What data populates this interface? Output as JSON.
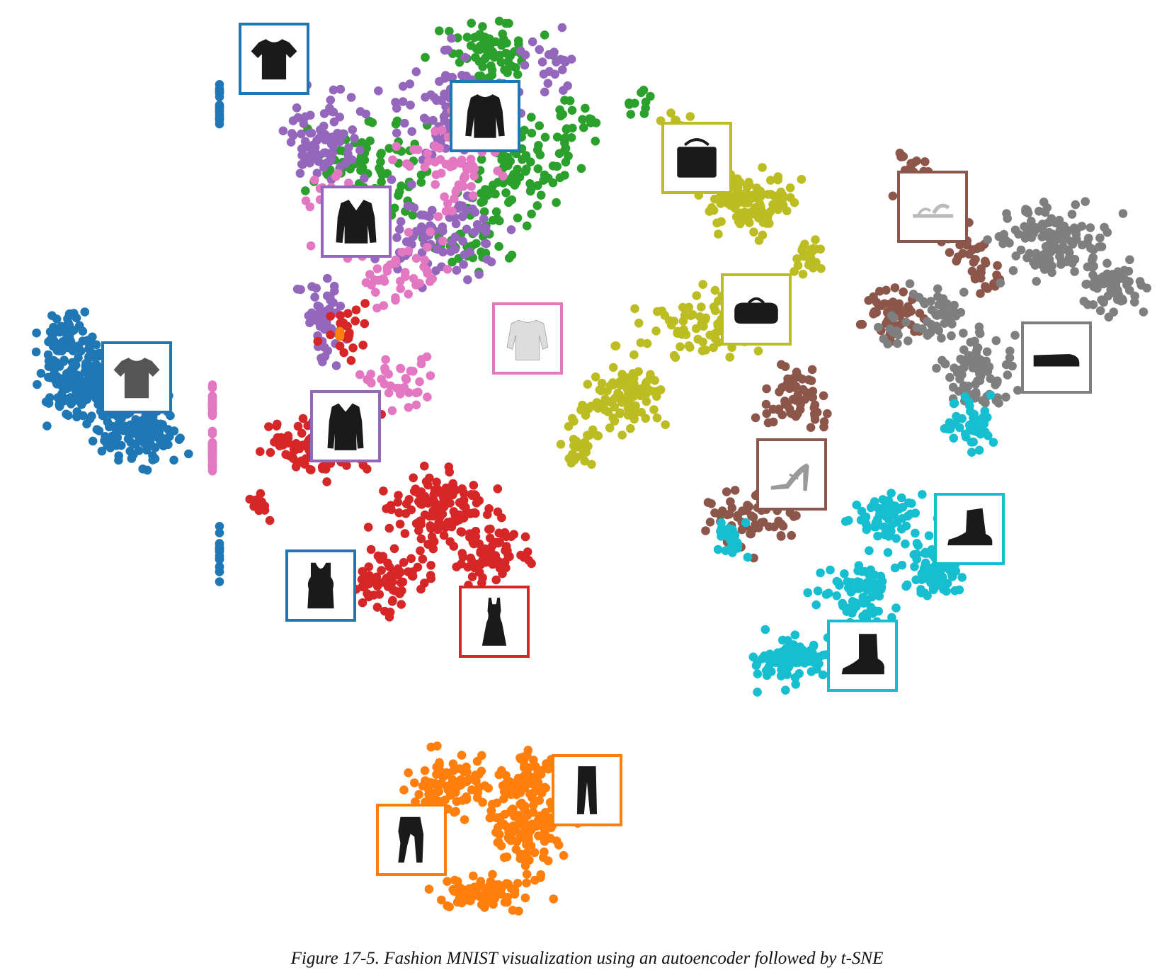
{
  "chart_data": {
    "type": "scatter",
    "title": "",
    "xlabel": "",
    "ylabel": "",
    "axes_visible": false,
    "grid": false,
    "legend": "none",
    "clusters": [
      {
        "color": "#1f77b4",
        "points": 420,
        "x": [
          80,
          230
        ],
        "y": [
          430,
          720
        ]
      },
      {
        "color": "#2ca02c",
        "points": 330,
        "x": [
          380,
          900
        ],
        "y": [
          20,
          420
        ]
      },
      {
        "color": "#9467bd",
        "points": 340,
        "x": [
          380,
          900
        ],
        "y": [
          20,
          610
        ]
      },
      {
        "color": "#e377c2",
        "points": 230,
        "x": [
          380,
          900
        ],
        "y": [
          40,
          600
        ]
      },
      {
        "color": "#d62728",
        "points": 420,
        "x": [
          360,
          820
        ],
        "y": [
          460,
          930
        ]
      },
      {
        "color": "#bcbd22",
        "points": 380,
        "x": [
          800,
          1200
        ],
        "y": [
          140,
          680
        ]
      },
      {
        "color": "#8c564b",
        "points": 280,
        "x": [
          1020,
          1400
        ],
        "y": [
          200,
          770
        ]
      },
      {
        "color": "#7f7f7f",
        "points": 330,
        "x": [
          1300,
          1640
        ],
        "y": [
          270,
          700
        ]
      },
      {
        "color": "#17becf",
        "points": 380,
        "x": [
          1050,
          1500
        ],
        "y": [
          540,
          960
        ]
      },
      {
        "color": "#ff7f0e",
        "points": 380,
        "x": [
          560,
          870
        ],
        "y": [
          1080,
          1290
        ]
      }
    ],
    "thumbnails": [
      {
        "item": "t-shirt-graphic",
        "color": "#1f77b4"
      },
      {
        "item": "long-sleeve-top",
        "color": "#1f77b4"
      },
      {
        "item": "t-shirt",
        "color": "#1f77b4"
      },
      {
        "item": "tank-top",
        "color": "#1f77b4"
      },
      {
        "item": "jacket",
        "color": "#9467bd"
      },
      {
        "item": "coat",
        "color": "#9467bd"
      },
      {
        "item": "off-shoulder-shirt",
        "color": "#e377c2"
      },
      {
        "item": "dress",
        "color": "#d62728"
      },
      {
        "item": "shoulder-bag",
        "color": "#bcbd22"
      },
      {
        "item": "duffel-bag",
        "color": "#bcbd22"
      },
      {
        "item": "sandal",
        "color": "#8c564b"
      },
      {
        "item": "heeled-sandal",
        "color": "#8c564b"
      },
      {
        "item": "sneaker",
        "color": "#7f7f7f"
      },
      {
        "item": "ankle-boot",
        "color": "#17becf"
      },
      {
        "item": "ankle-boot",
        "color": "#17becf"
      },
      {
        "item": "trousers",
        "color": "#ff7f0e"
      },
      {
        "item": "leggings",
        "color": "#ff7f0e"
      }
    ]
  },
  "caption": "Figure 17-5. Fashion MNIST visualization using an autoencoder followed by t-SNE"
}
